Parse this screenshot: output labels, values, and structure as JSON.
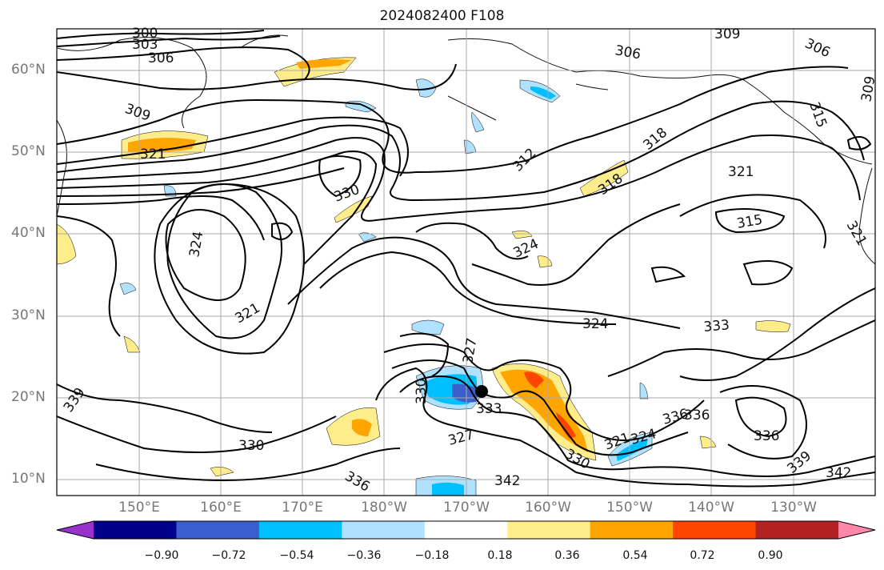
{
  "title": "2024082400 F108",
  "map": {
    "projection": "PlateCarree",
    "lon_range": [
      "140°E",
      "120°W"
    ],
    "lat_range": [
      "8°N",
      "65°N"
    ],
    "gridlines": true
  },
  "lat_labels": [
    "60°N",
    "50°N",
    "40°N",
    "30°N",
    "20°N",
    "10°N"
  ],
  "lon_labels": [
    "150°E",
    "160°E",
    "170°E",
    "180°W",
    "170°W",
    "160°W",
    "150°W",
    "140°W",
    "130°W"
  ],
  "contour_labels": [
    "300",
    "303",
    "306",
    "309",
    "321",
    "330",
    "324",
    "321",
    "339",
    "330",
    "336",
    "342",
    "327",
    "330",
    "333",
    "327",
    "330",
    "321",
    "324",
    "306",
    "306",
    "309",
    "315",
    "309",
    "312",
    "318",
    "321",
    "315",
    "321",
    "318",
    "324",
    "324",
    "333",
    "336",
    "336",
    "336",
    "339",
    "342"
  ],
  "colorbar": {
    "ticks": [
      "−0.90",
      "−0.72",
      "−0.54",
      "−0.36",
      "−0.18",
      "0.18",
      "0.36",
      "0.54",
      "0.72",
      "0.90"
    ],
    "colors": [
      "#9932cc",
      "#00008b",
      "#3a5fcd",
      "#00bfff",
      "#b0e2ff",
      "#ffffff",
      "#ffec8b",
      "#ffa500",
      "#ff4500",
      "#b22222",
      "#ff88aa"
    ]
  },
  "colors": {
    "grid": "#aaaaaa",
    "contour": "#000000",
    "coast": "#111111"
  }
}
